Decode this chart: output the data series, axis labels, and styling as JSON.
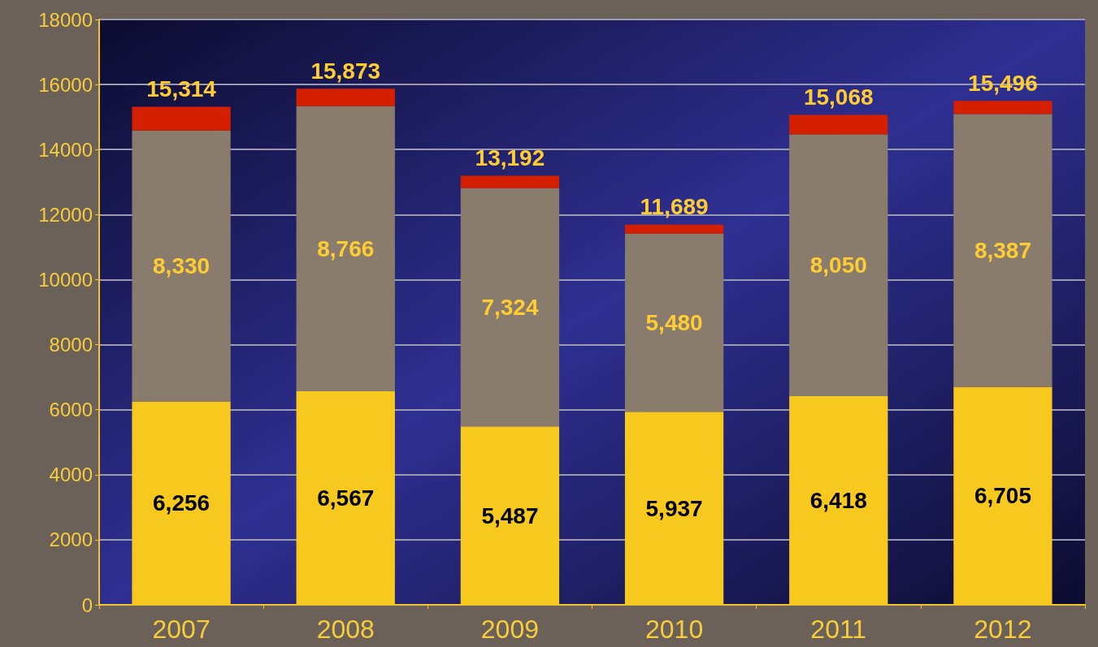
{
  "chart_data": {
    "type": "bar",
    "stacked": true,
    "categories": [
      "2007",
      "2008",
      "2009",
      "2010",
      "2011",
      "2012"
    ],
    "series": [
      {
        "color": "#f7c81e",
        "values": [
          6256,
          6567,
          5487,
          5937,
          6418,
          6705
        ],
        "value_labels": [
          "6,256",
          "6,567",
          "5,487",
          "5,937",
          "6,418",
          "6,705"
        ]
      },
      {
        "color": "#8a7c6c",
        "values": [
          8330,
          8766,
          7324,
          5480,
          8050,
          8387
        ],
        "value_labels": [
          "8,330",
          "8,766",
          "7,324",
          "5,480",
          "8,050",
          "8,387"
        ]
      },
      {
        "color": "#d42000",
        "values": [
          728,
          540,
          381,
          272,
          600,
          404
        ]
      }
    ],
    "totals": [
      "15,314",
      "15,873",
      "13,192",
      "11,689",
      "15,068",
      "15,496"
    ],
    "ylim": [
      0,
      18000
    ],
    "yticks": [
      0,
      2000,
      4000,
      6000,
      8000,
      10000,
      12000,
      14000,
      16000,
      18000
    ],
    "grid": "y"
  }
}
